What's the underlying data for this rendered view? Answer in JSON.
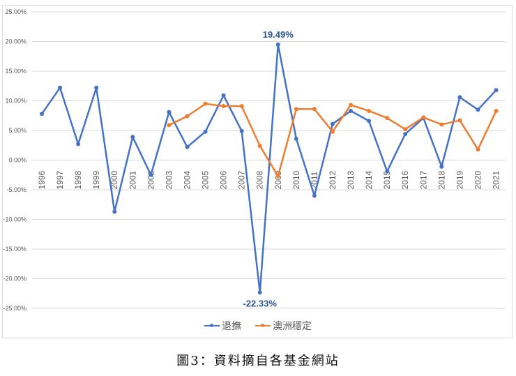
{
  "chart_data": {
    "type": "line",
    "title": "",
    "xlabel": "",
    "ylabel": "",
    "categories": [
      "1996",
      "1997",
      "1998",
      "1999",
      "2000",
      "2001",
      "2002",
      "2003",
      "2004",
      "2005",
      "2006",
      "2007",
      "2008",
      "2009",
      "2010",
      "2011",
      "2012",
      "2013",
      "2014",
      "2015",
      "2016",
      "2017",
      "2018",
      "2019",
      "2020",
      "2021"
    ],
    "series": [
      {
        "name": "退撫",
        "color": "#4472c4",
        "values": [
          7.8,
          12.2,
          2.7,
          12.2,
          -8.7,
          3.9,
          -2.5,
          8.1,
          2.2,
          4.8,
          10.9,
          4.9,
          -22.33,
          19.49,
          3.6,
          -6.0,
          6.1,
          8.3,
          6.6,
          -1.9,
          4.4,
          7.1,
          -1.1,
          10.6,
          8.5,
          11.8
        ]
      },
      {
        "name": "澳洲穩定",
        "color": "#ed7d31",
        "values": [
          null,
          null,
          null,
          null,
          null,
          null,
          null,
          5.9,
          7.4,
          9.5,
          9.1,
          9.1,
          2.4,
          -2.7,
          8.6,
          8.6,
          4.8,
          9.3,
          8.3,
          7.1,
          5.2,
          7.2,
          6.0,
          6.7,
          1.8,
          8.3
        ]
      }
    ],
    "annotations": [
      {
        "label": "19.49%",
        "category": "2009",
        "series": "退撫",
        "position": "above"
      },
      {
        "label": "-22.33%",
        "category": "2008",
        "series": "退撫",
        "position": "below"
      }
    ],
    "yticks": [
      "25.00%",
      "20.00%",
      "15.00%",
      "10.00%",
      "5.00%",
      "0.00%",
      "-5.00%",
      "-10.00%",
      "-15.00%",
      "-20.00%",
      "-25.00%"
    ],
    "ylim": [
      -25,
      25
    ],
    "grid": true,
    "legend_position": "bottom"
  },
  "legend": {
    "items": [
      {
        "label": "退撫",
        "color": "#4472c4"
      },
      {
        "label": "澳洲穩定",
        "color": "#ed7d31"
      }
    ]
  },
  "caption": "圖3：資料摘自各基金網站"
}
